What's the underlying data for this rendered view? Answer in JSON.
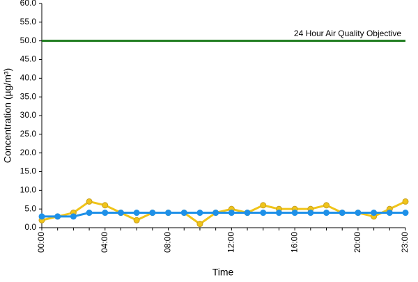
{
  "chart_data": {
    "type": "line",
    "x_label": "Time",
    "y_label": "Concentration (µg/m³)",
    "categories": [
      "00:00",
      null,
      null,
      null,
      "04:00",
      null,
      null,
      null,
      "08:00",
      null,
      null,
      null,
      "12:00",
      null,
      null,
      null,
      "16:00",
      null,
      null,
      null,
      "20:00",
      null,
      null,
      "23:00"
    ],
    "series": [
      {
        "color": "#f0c419",
        "marker_edge": "#c8a020",
        "values": [
          2,
          3,
          4,
          7,
          6,
          4,
          2,
          4,
          4,
          4,
          1,
          4,
          5,
          4,
          6,
          5,
          5,
          5,
          6,
          4,
          4,
          3,
          5,
          7
        ]
      },
      {
        "color": "#1e90e8",
        "marker_edge": "#1e90e8",
        "values": [
          3,
          3,
          3,
          4,
          4,
          4,
          4,
          4,
          4,
          4,
          4,
          4,
          4,
          4,
          4,
          4,
          4,
          4,
          4,
          4,
          4,
          4,
          4,
          4
        ]
      }
    ],
    "reference_line": {
      "value": 50,
      "label": "24 Hour Air Quality Objective",
      "color": "#1a7a1a"
    },
    "ylim": [
      0,
      60
    ],
    "yticks": [
      {
        "value": 0,
        "label": "0.0"
      },
      {
        "value": 5,
        "label": "5.0"
      },
      {
        "value": 10,
        "label": "10.0"
      },
      {
        "value": 15,
        "label": "15.0"
      },
      {
        "value": 20,
        "label": "20.0"
      },
      {
        "value": 25,
        "label": "25.0"
      },
      {
        "value": 30,
        "label": "30.0"
      },
      {
        "value": 35,
        "label": "35.0"
      },
      {
        "value": 40,
        "label": "40.0"
      },
      {
        "value": 45,
        "label": "45.0"
      },
      {
        "value": 50,
        "label": "50.0"
      },
      {
        "value": 55,
        "label": "55.0"
      },
      {
        "value": 60,
        "label": "60.0"
      }
    ],
    "grid": false
  }
}
